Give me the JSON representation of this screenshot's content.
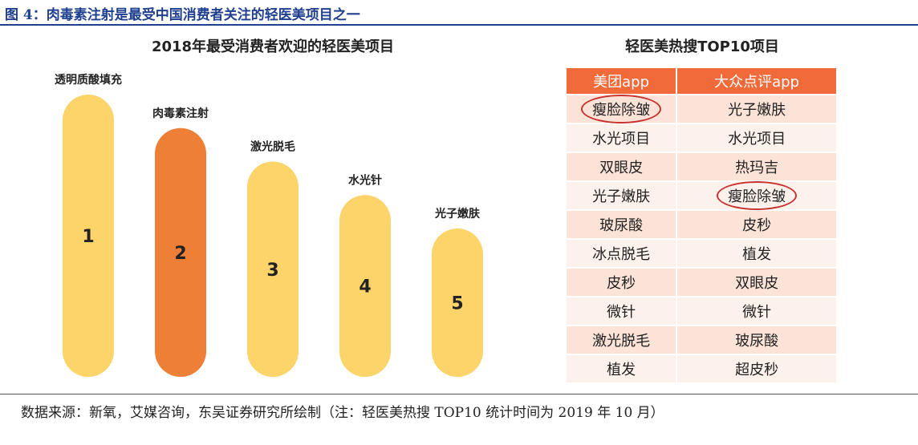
{
  "figure": {
    "title": "图 4：肉毒素注射是最受中国消费者关注的轻医美项目之一",
    "source": "数据来源：新氧，艾媒咨询，东吴证券研究所绘制（注：轻医美热搜 TOP10 统计时间为 2019 年 10 月）"
  },
  "chart_data": [
    {
      "type": "bar",
      "title": "2018年最受消费者欢迎的轻医美项目",
      "categories": [
        "透明质酸填充",
        "肉毒素注射",
        "激光脱毛",
        "水光针",
        "光子嫩肤"
      ],
      "ranks": [
        "1",
        "2",
        "3",
        "4",
        "5"
      ],
      "values": [
        5,
        4,
        3,
        2,
        1
      ],
      "colors": [
        "#fdd46a",
        "#ee7f36",
        "#fdd46a",
        "#fdd46a",
        "#fdd46a"
      ]
    },
    {
      "type": "table",
      "title": "轻医美热搜TOP10项目",
      "columns": [
        "美团app",
        "大众点评app"
      ],
      "rows": [
        [
          "瘦脸除皱",
          "光子嫩肤"
        ],
        [
          "水光项目",
          "水光项目"
        ],
        [
          "双眼皮",
          "热玛吉"
        ],
        [
          "光子嫩肤",
          "瘦脸除皱"
        ],
        [
          "玻尿酸",
          "皮秒"
        ],
        [
          "冰点脱毛",
          "植发"
        ],
        [
          "皮秒",
          "双眼皮"
        ],
        [
          "微针",
          "微针"
        ],
        [
          "激光脱毛",
          "玻尿酸"
        ],
        [
          "植发",
          "超皮秒"
        ]
      ],
      "highlight": "瘦脸除皱",
      "header_color": "#f06a3a",
      "highlight_color": "#c8322f"
    }
  ]
}
